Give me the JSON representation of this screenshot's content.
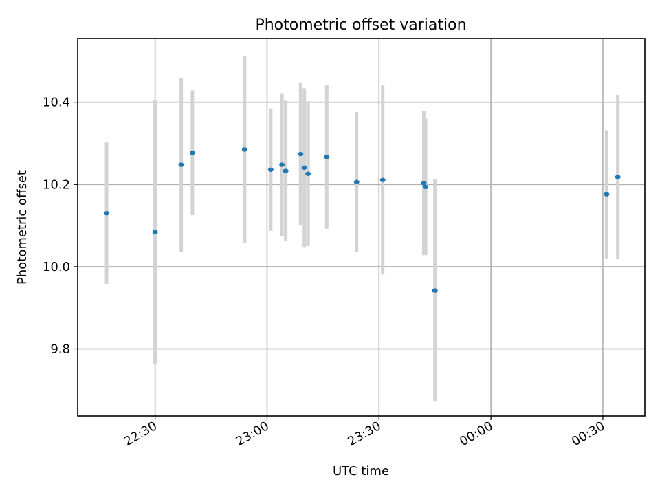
{
  "chart_data": {
    "type": "scatter",
    "title": "Photometric offset variation",
    "xlabel": "UTC time",
    "ylabel": "Photometric offset",
    "x_ticks": [
      "22:30",
      "23:00",
      "23:30",
      "00:00",
      "00:30"
    ],
    "y_ticks": [
      "9.8",
      "10.0",
      "10.2",
      "10.4"
    ],
    "y_tick_values": [
      9.8,
      10.0,
      10.2,
      10.4
    ],
    "ylim": [
      9.637,
      10.555
    ],
    "xlim": [
      "22:09:15",
      "00:41:15"
    ],
    "grid": true,
    "point_color": "#1f77b4",
    "errorbar_color": "#d3d3d3",
    "points": [
      {
        "t": "22:17",
        "y": 10.13,
        "err": 0.172
      },
      {
        "t": "22:30",
        "y": 10.084,
        "err": 0.321
      },
      {
        "t": "22:37",
        "y": 10.248,
        "err": 0.212
      },
      {
        "t": "22:40",
        "y": 10.277,
        "err": 0.152
      },
      {
        "t": "22:54",
        "y": 10.285,
        "err": 0.227
      },
      {
        "t": "23:01",
        "y": 10.236,
        "err": 0.149
      },
      {
        "t": "23:04",
        "y": 10.248,
        "err": 0.174
      },
      {
        "t": "23:05",
        "y": 10.233,
        "err": 0.171
      },
      {
        "t": "23:09",
        "y": 10.274,
        "err": 0.174
      },
      {
        "t": "23:10",
        "y": 10.241,
        "err": 0.193
      },
      {
        "t": "23:11",
        "y": 10.226,
        "err": 0.176
      },
      {
        "t": "23:16",
        "y": 10.267,
        "err": 0.175
      },
      {
        "t": "23:24",
        "y": 10.206,
        "err": 0.17
      },
      {
        "t": "23:31",
        "y": 10.211,
        "err": 0.23
      },
      {
        "t": "23:42",
        "y": 10.203,
        "err": 0.175
      },
      {
        "t": "23:42:30",
        "y": 10.194,
        "err": 0.166
      },
      {
        "t": "23:45",
        "y": 9.942,
        "err": 0.27
      },
      {
        "t": "00:31",
        "y": 10.176,
        "err": 0.156
      },
      {
        "t": "00:34",
        "y": 10.218,
        "err": 0.2
      }
    ]
  }
}
